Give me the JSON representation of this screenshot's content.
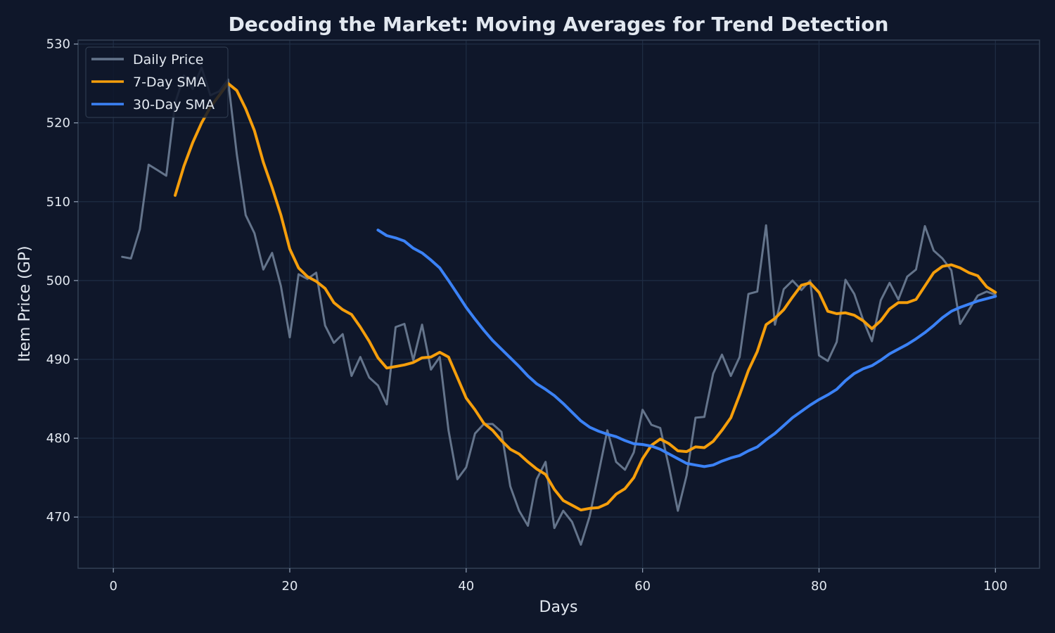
{
  "chart_data": {
    "type": "line",
    "title": "Decoding the Market: Moving Averages for Trend Detection",
    "xlabel": "Days",
    "ylabel": "Item Price (GP)",
    "xlim": [
      -4,
      105
    ],
    "ylim": [
      463.5,
      530.5
    ],
    "xticks": [
      0,
      20,
      40,
      60,
      80,
      100
    ],
    "yticks": [
      470,
      480,
      490,
      500,
      510,
      520,
      530
    ],
    "grid": true,
    "legend_position": "top-left",
    "colors": {
      "background": "#0f172a",
      "grid": "#1f2d44",
      "frame": "#334155",
      "text": "#e2e8f0"
    },
    "series": [
      {
        "name": "Daily Price",
        "color": "#64748b",
        "x": [
          1,
          2,
          3,
          4,
          5,
          6,
          7,
          8,
          9,
          10,
          11,
          12,
          13,
          14,
          15,
          16,
          17,
          18,
          19,
          20,
          21,
          22,
          23,
          24,
          25,
          26,
          27,
          28,
          29,
          30,
          31,
          32,
          33,
          34,
          35,
          36,
          37,
          38,
          39,
          40,
          41,
          42,
          43,
          44,
          45,
          46,
          47,
          48,
          49,
          50,
          51,
          52,
          53,
          54,
          55,
          56,
          57,
          58,
          59,
          60,
          61,
          62,
          63,
          64,
          65,
          66,
          67,
          68,
          69,
          70,
          71,
          72,
          73,
          74,
          75,
          76,
          77,
          78,
          79,
          80,
          81,
          82,
          83,
          84,
          85,
          86,
          87,
          88,
          89,
          90,
          91,
          92,
          93,
          94,
          95,
          96,
          97,
          98,
          99,
          100
        ],
        "y": [
          503.0,
          502.8,
          506.5,
          514.7,
          514.0,
          513.3,
          522.5,
          526.0,
          524.3,
          527.0,
          523.5,
          524.0,
          525.5,
          516.0,
          508.3,
          506.0,
          501.4,
          503.5,
          499.3,
          492.8,
          500.8,
          500.2,
          501.0,
          494.3,
          492.1,
          493.2,
          487.9,
          490.3,
          487.7,
          486.7,
          484.3,
          494.1,
          494.5,
          489.9,
          494.4,
          488.7,
          490.3,
          481.0,
          474.8,
          476.3,
          480.6,
          481.8,
          481.8,
          480.8,
          473.9,
          470.8,
          468.9,
          474.8,
          477.0,
          468.6,
          470.8,
          469.4,
          466.5,
          470.1,
          475.5,
          481.0,
          477.0,
          476.0,
          478.2,
          483.6,
          481.7,
          481.3,
          476.3,
          470.8,
          475.3,
          482.6,
          482.7,
          488.2,
          490.6,
          487.9,
          490.3,
          498.3,
          498.6,
          507.0,
          494.4,
          498.9,
          500.0,
          498.8,
          500.0,
          490.5,
          489.8,
          492.2,
          500.1,
          498.3,
          495.0,
          492.3,
          497.5,
          499.7,
          497.6,
          500.5,
          501.4,
          506.9,
          503.8,
          502.8,
          501.3,
          494.5,
          496.3,
          498.1,
          498.6,
          498.2
        ]
      },
      {
        "name": "7-Day SMA",
        "color": "#f59e0b",
        "x": [
          7,
          8,
          9,
          10,
          11,
          12,
          13,
          14,
          15,
          16,
          17,
          18,
          19,
          20,
          21,
          22,
          23,
          24,
          25,
          26,
          27,
          28,
          29,
          30,
          31,
          32,
          33,
          34,
          35,
          36,
          37,
          38,
          39,
          40,
          41,
          42,
          43,
          44,
          45,
          46,
          47,
          48,
          49,
          50,
          51,
          52,
          53,
          54,
          55,
          56,
          57,
          58,
          59,
          60,
          61,
          62,
          63,
          64,
          65,
          66,
          67,
          68,
          69,
          70,
          71,
          72,
          73,
          74,
          75,
          76,
          77,
          78,
          79,
          80,
          81,
          82,
          83,
          84,
          85,
          86,
          87,
          88,
          89,
          90,
          91,
          92,
          93,
          94,
          95,
          96,
          97,
          98,
          99,
          100
        ],
        "y": [
          510.8,
          514.5,
          517.5,
          520.0,
          522.0,
          523.5,
          525.0,
          524.1,
          521.8,
          519.0,
          515.0,
          511.8,
          508.3,
          504.0,
          501.6,
          500.5,
          499.9,
          499.0,
          497.2,
          496.3,
          495.7,
          494.1,
          492.3,
          490.2,
          488.9,
          489.1,
          489.3,
          489.6,
          490.2,
          490.3,
          490.9,
          490.3,
          487.7,
          485.1,
          483.6,
          481.9,
          481.0,
          479.7,
          478.6,
          478.0,
          477.0,
          476.1,
          475.4,
          473.5,
          472.1,
          471.5,
          470.9,
          471.1,
          471.2,
          471.7,
          472.9,
          473.6,
          475.0,
          477.4,
          479.1,
          479.9,
          479.3,
          478.4,
          478.3,
          478.9,
          478.8,
          479.6,
          481.0,
          482.6,
          485.5,
          488.6,
          491.0,
          494.4,
          495.2,
          496.3,
          497.9,
          499.4,
          499.7,
          498.5,
          496.1,
          495.8,
          495.9,
          495.6,
          494.9,
          493.9,
          494.9,
          496.4,
          497.2,
          497.2,
          497.6,
          499.3,
          501.0,
          501.8,
          502.0,
          501.6,
          501.0,
          500.6,
          499.2,
          498.5
        ]
      },
      {
        "name": "30-Day SMA",
        "color": "#3b82f6",
        "x": [
          30,
          31,
          32,
          33,
          34,
          35,
          36,
          37,
          38,
          39,
          40,
          41,
          42,
          43,
          44,
          45,
          46,
          47,
          48,
          49,
          50,
          51,
          52,
          53,
          54,
          55,
          56,
          57,
          58,
          59,
          60,
          61,
          62,
          63,
          64,
          65,
          66,
          67,
          68,
          69,
          70,
          71,
          72,
          73,
          74,
          75,
          76,
          77,
          78,
          79,
          80,
          81,
          82,
          83,
          84,
          85,
          86,
          87,
          88,
          89,
          90,
          91,
          92,
          93,
          94,
          95,
          96,
          97,
          98,
          99,
          100
        ],
        "y": [
          506.4,
          505.7,
          505.4,
          505.0,
          504.1,
          503.5,
          502.6,
          501.6,
          500.0,
          498.3,
          496.6,
          495.1,
          493.7,
          492.4,
          491.3,
          490.2,
          489.1,
          487.9,
          486.9,
          486.2,
          485.4,
          484.4,
          483.3,
          482.2,
          481.4,
          480.9,
          480.5,
          480.2,
          479.7,
          479.3,
          479.2,
          479.0,
          478.6,
          478.0,
          477.4,
          476.8,
          476.6,
          476.4,
          476.6,
          477.1,
          477.5,
          477.8,
          478.4,
          478.9,
          479.8,
          480.6,
          481.6,
          482.6,
          483.4,
          484.2,
          484.9,
          485.5,
          486.2,
          487.3,
          488.2,
          488.8,
          489.2,
          489.9,
          490.7,
          491.3,
          491.9,
          492.6,
          493.4,
          494.3,
          495.3,
          496.1,
          496.6,
          497.0,
          497.4,
          497.7,
          498.0
        ]
      }
    ]
  }
}
